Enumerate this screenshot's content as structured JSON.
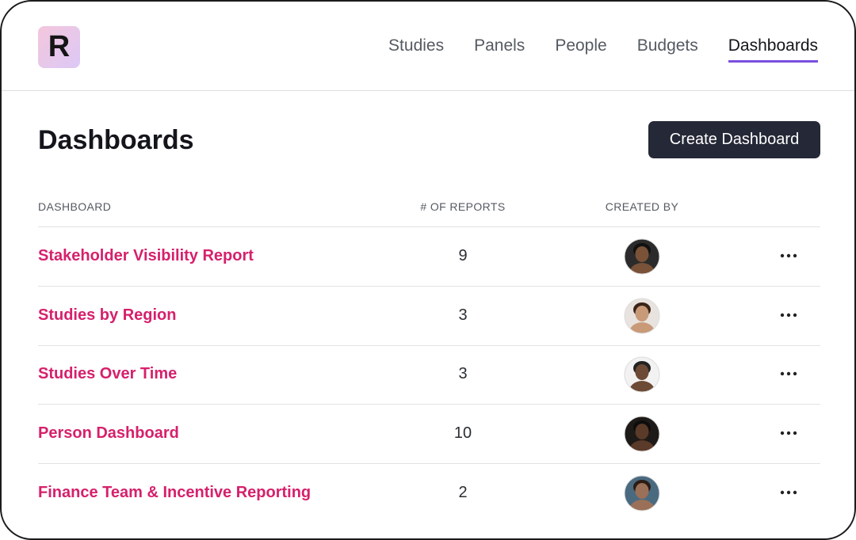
{
  "logo": {
    "letter": "R"
  },
  "nav": {
    "items": [
      "Studies",
      "Panels",
      "People",
      "Budgets",
      "Dashboards"
    ],
    "active": 4
  },
  "page": {
    "title": "Dashboards",
    "action": "Create Dashboard"
  },
  "table": {
    "columns": [
      "DASHBOARD",
      "# OF REPORTS",
      "CREATED BY"
    ],
    "rows": [
      [
        "Stakeholder Visibility Report",
        9
      ],
      [
        "Studies by Region",
        3
      ],
      [
        "Studies Over Time",
        3
      ],
      [
        "Person Dashboard",
        10
      ],
      [
        "Finance Team & Incentive Reporting",
        2
      ]
    ]
  }
}
